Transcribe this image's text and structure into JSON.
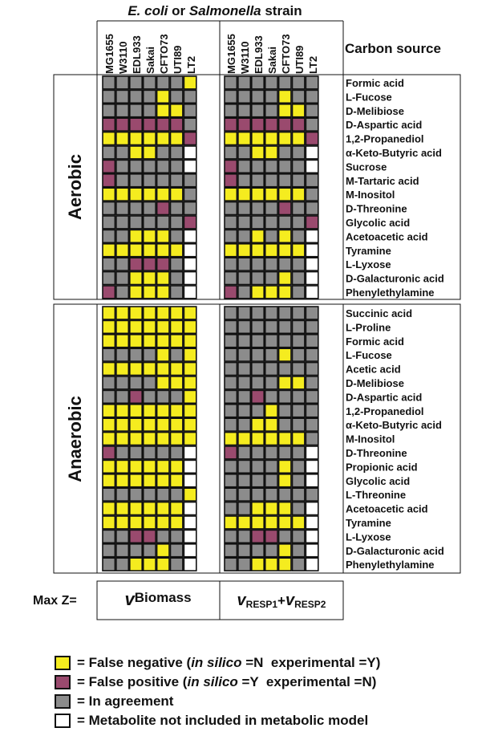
{
  "title": {
    "italic1": "E. coli",
    "mid": " or ",
    "italic2": "Salmonella",
    "end": " strain"
  },
  "strains": [
    "MG1655",
    "W3110",
    "EDL933",
    "Sakai",
    "CFTO73",
    "UTI89",
    "LT2"
  ],
  "carbon_source_header": "Carbon source",
  "colors": {
    "Y": "#f5ec1f",
    "P": "#9a4a6e",
    "G": "#8c8c8c",
    "W": "#ffffff"
  },
  "max_z_label": "Max Z=",
  "objective_left": {
    "v": "v",
    "sub": "Biomass"
  },
  "objective_right": {
    "v1": "v",
    "sub1": "RESP1",
    "plus": "+",
    "v2": "v",
    "sub2": "RESP2"
  },
  "sections": [
    {
      "label": "Aerobic",
      "rows": [
        {
          "name": "Formic acid",
          "left": "GGGGGGY",
          "right": "GGGGGGG"
        },
        {
          "name": "L-Fucose",
          "left": "GGGGYGG",
          "right": "GGGGYGG"
        },
        {
          "name": "D-Melibiose",
          "left": "GGGGYYG",
          "right": "GGGGYYG"
        },
        {
          "name": "D-Aspartic acid",
          "left": "PPPPPPG",
          "right": "PPPPPPG"
        },
        {
          "name": "1,2-Propanediol",
          "left": "YYYYYYP",
          "right": "YYYYYYP"
        },
        {
          "name": "α-Keto-Butyric acid",
          "left": "GGYYGGW",
          "right": "GGYYGGW"
        },
        {
          "name": "Sucrose",
          "left": "PGGGGGW",
          "right": "PGGGGGW"
        },
        {
          "name": "M-Tartaric acid",
          "left": "PGGGGGG",
          "right": "PGGGGGG"
        },
        {
          "name": "M-Inositol",
          "left": "YYYYYYG",
          "right": "YYYYYYG"
        },
        {
          "name": "D-Threonine",
          "left": "GGGGPGG",
          "right": "GGGGPGG"
        },
        {
          "name": "Glycolic acid",
          "left": "GGGGGGP",
          "right": "GGGGGGP"
        },
        {
          "name": "Acetoacetic acid",
          "left": "GGYYYGW",
          "right": "GGYGYGW"
        },
        {
          "name": "Tyramine",
          "left": "YYYYYYW",
          "right": "YYYYYYW"
        },
        {
          "name": "L-Lyxose",
          "left": "GGPPPGW",
          "right": "GGGGGGW"
        },
        {
          "name": "D-Galacturonic acid",
          "left": "GGYYYGW",
          "right": "GGGGYGW"
        },
        {
          "name": "Phenylethylamine",
          "left": "PGYYYGW",
          "right": "PGYYYGW"
        }
      ]
    },
    {
      "label": "Anaerobic",
      "rows": [
        {
          "name": "Succinic acid",
          "left": "YYYYYYY",
          "right": "GGGGGGG"
        },
        {
          "name": "L-Proline",
          "left": "YYYYYYY",
          "right": "GGGGGGG"
        },
        {
          "name": "Formic acid",
          "left": "YYYYYYY",
          "right": "GGGGGGG"
        },
        {
          "name": "L-Fucose",
          "left": "GGGGYGY",
          "right": "GGGGYGG"
        },
        {
          "name": "Acetic acid",
          "left": "YYYYYYY",
          "right": "GGGGGGG"
        },
        {
          "name": "D-Melibiose",
          "left": "GGGGYYY",
          "right": "GGGGYYG"
        },
        {
          "name": "D-Aspartic acid",
          "left": "GGPGGGY",
          "right": "GGPGGGG"
        },
        {
          "name": "1,2-Propanediol",
          "left": "YYYYYYY",
          "right": "GGGYGGG"
        },
        {
          "name": "α-Keto-Butyric acid",
          "left": "YYYYYYY",
          "right": "GGYYGGG"
        },
        {
          "name": "M-Inositol",
          "left": "YYYYYYY",
          "right": "YYYYYYG"
        },
        {
          "name": "D-Threonine",
          "left": "PGGGGGW",
          "right": "PGGGGGW"
        },
        {
          "name": "Propionic acid",
          "left": "YYYYYYW",
          "right": "GGGGYGW"
        },
        {
          "name": "Glycolic acid",
          "left": "YYYYYYW",
          "right": "GGGGYGW"
        },
        {
          "name": "L-Threonine",
          "left": "GGGGGGY",
          "right": "GGGGGGG"
        },
        {
          "name": "Acetoacetic acid",
          "left": "YYYYYYW",
          "right": "GGYYYGW"
        },
        {
          "name": "Tyramine",
          "left": "YYYYYYW",
          "right": "YYYYYYW"
        },
        {
          "name": "L-Lyxose",
          "left": "GGPPGGW",
          "right": "GGPPGGW"
        },
        {
          "name": "D-Galacturonic acid",
          "left": "GGGGYGW",
          "right": "GGGGYGW"
        },
        {
          "name": "Phenylethylamine",
          "left": "GGYYYGW",
          "right": "GGYYYGW"
        }
      ]
    }
  ],
  "legend": [
    {
      "color": "#f5ec1f",
      "text_a": "= False negative (",
      "italic": "in silico",
      "text_b": " =N  experimental =Y)"
    },
    {
      "color": "#9a4a6e",
      "text_a": "= False positive (",
      "italic": "in silico",
      "text_b": " =Y  experimental =N)"
    },
    {
      "color": "#8c8c8c",
      "text_a": "= In agreement",
      "italic": "",
      "text_b": ""
    },
    {
      "color": "#ffffff",
      "text_a": "= Metabolite not included in metabolic model",
      "italic": "",
      "text_b": ""
    }
  ]
}
